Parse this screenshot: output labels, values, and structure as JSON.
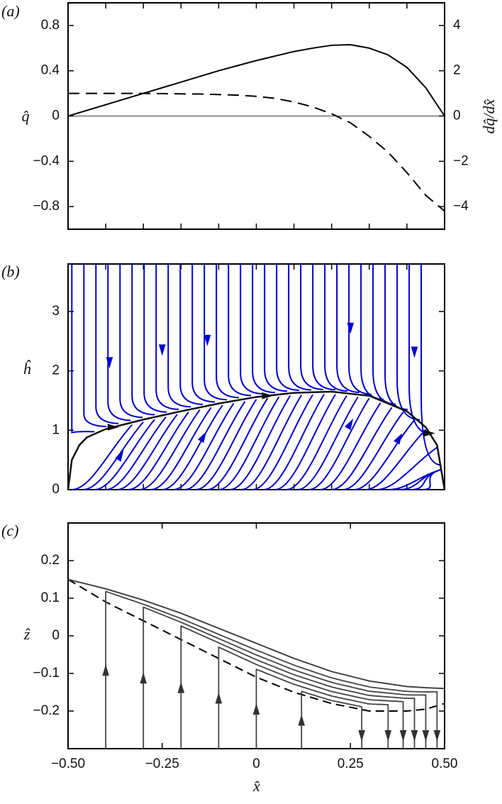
{
  "chart_data": [
    {
      "type": "line",
      "panel_label": "(a)",
      "ylabel": "q̂",
      "y2label": "dq̂/dx̂",
      "xlim": [
        -0.5,
        0.5
      ],
      "xticks": [
        -0.4,
        -0.3,
        -0.2,
        -0.1,
        0,
        0.1,
        0.2,
        0.3,
        0.4
      ],
      "xtick_labels": false,
      "ylim": [
        -1,
        1
      ],
      "yticks": [
        0.8,
        0.4,
        0,
        {
          "value": -0.4,
          "label": "−0.4"
        },
        {
          "value": -0.8,
          "label": "−0.8"
        }
      ],
      "y2lim": [
        -5,
        5
      ],
      "y2ticks": [
        4,
        2,
        0,
        {
          "value": -2,
          "label": "−2"
        },
        {
          "value": -4,
          "label": "−4"
        }
      ],
      "zero_line": true,
      "x": [
        -0.5,
        -0.45,
        -0.4,
        -0.35,
        -0.3,
        -0.25,
        -0.2,
        -0.15,
        -0.1,
        -0.05,
        0,
        0.05,
        0.1,
        0.15,
        0.2,
        0.25,
        0.3,
        0.35,
        0.4,
        0.45,
        0.5
      ],
      "series": [
        {
          "color": "#000000",
          "dash": "none",
          "values": [
            0,
            0.05,
            0.1,
            0.15,
            0.2,
            0.25,
            0.3,
            0.35,
            0.4,
            0.445,
            0.49,
            0.53,
            0.57,
            0.6,
            0.625,
            0.63,
            0.6,
            0.54,
            0.43,
            0.25,
            0
          ]
        },
        {
          "color": "#000000",
          "dash": "16 9",
          "axis": "y2",
          "values": [
            1,
            1,
            1,
            1,
            1,
            0.99,
            0.98,
            0.97,
            0.95,
            0.92,
            0.87,
            0.78,
            0.62,
            0.4,
            0.1,
            -0.3,
            -0.9,
            -1.6,
            -2.5,
            -3.5,
            -4.2
          ]
        }
      ]
    },
    {
      "type": "phase",
      "panel_label": "(b)",
      "ylabel": "ĥ",
      "xlim": [
        -0.5,
        0.5
      ],
      "xticks": [
        -0.4,
        -0.3,
        -0.2,
        -0.1,
        0,
        0.1,
        0.2,
        0.3,
        0.4
      ],
      "xtick_labels": false,
      "ylim": [
        0,
        3.8
      ],
      "yticks": [
        0,
        1,
        2,
        3
      ],
      "streamline_color": "#0000cc",
      "x": [
        -0.5,
        -0.49,
        -0.47,
        -0.45,
        -0.4,
        -0.3,
        -0.2,
        -0.1,
        0,
        0.1,
        0.2,
        0.3,
        0.4,
        0.45,
        0.48,
        0.5
      ],
      "series": [
        {
          "color": "#111111",
          "dash": "none",
          "values": [
            0,
            0.5,
            0.75,
            0.88,
            1.02,
            1.18,
            1.32,
            1.45,
            1.56,
            1.63,
            1.65,
            1.58,
            1.32,
            1.05,
            0.75,
            0
          ]
        }
      ]
    },
    {
      "type": "trajectory",
      "panel_label": "(c)",
      "ylabel": "ẑ",
      "xlabel": "x̂",
      "xlim": [
        -0.5,
        0.5
      ],
      "xticks": [
        {
          "value": -0.5,
          "label": "−0.50"
        },
        {
          "value": -0.25,
          "label": "−0.25"
        },
        0,
        0.25,
        {
          "value": 0.5,
          "label": "0.50"
        }
      ],
      "xtick_labels": true,
      "ylim": [
        -0.3,
        0.3
      ],
      "yticks": [
        0.2,
        0.1,
        0,
        {
          "value": -0.1,
          "label": "−0.1"
        },
        {
          "value": -0.2,
          "label": "−0.2"
        }
      ],
      "x": [
        -0.5,
        -0.4,
        -0.3,
        -0.2,
        -0.1,
        0,
        0.1,
        0.2,
        0.3,
        0.4,
        0.45,
        0.5
      ],
      "series": [
        {
          "color": "#000000",
          "dash": "12 7",
          "values": [
            0.15,
            0.09,
            0.04,
            -0.01,
            -0.06,
            -0.11,
            -0.15,
            -0.18,
            -0.2,
            -0.2,
            -0.195,
            -0.18
          ]
        },
        {
          "color": "#444444",
          "dash": "none",
          "values": [
            0.15,
            0.125,
            0.095,
            0.06,
            0.02,
            -0.02,
            -0.06,
            -0.095,
            -0.12,
            -0.135,
            -0.138,
            -0.14
          ]
        }
      ],
      "trajectories": [
        {
          "rise_x": -0.4,
          "fall_x": 0.48
        },
        {
          "rise_x": -0.3,
          "fall_x": 0.45
        },
        {
          "rise_x": -0.2,
          "fall_x": 0.42
        },
        {
          "rise_x": -0.1,
          "fall_x": 0.39
        },
        {
          "rise_x": 0,
          "fall_x": 0.35
        },
        {
          "rise_x": 0.12,
          "fall_x": 0.28
        }
      ]
    }
  ]
}
